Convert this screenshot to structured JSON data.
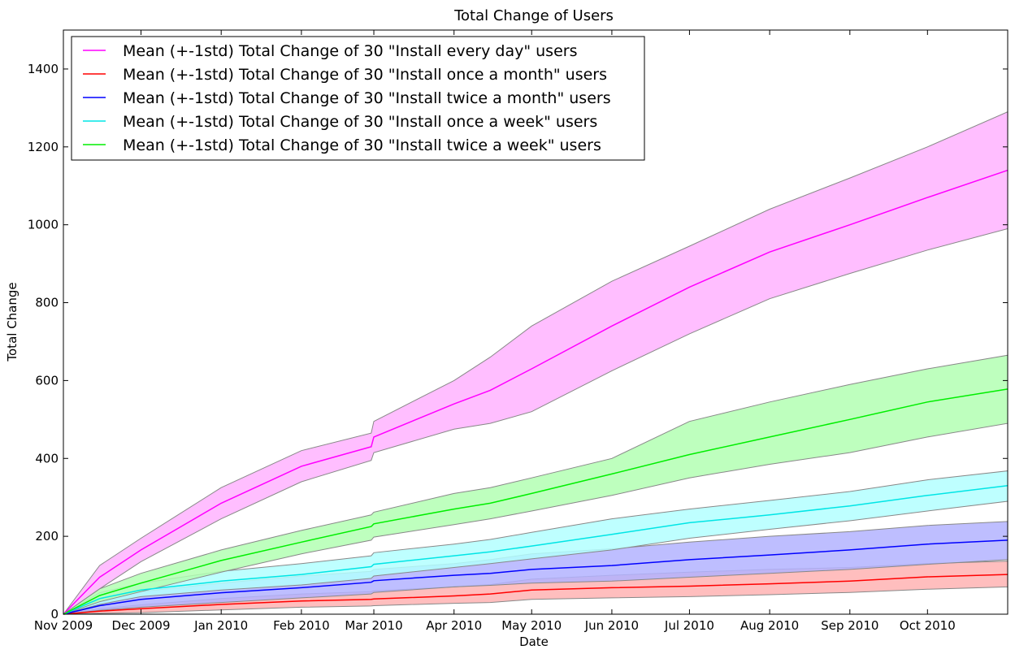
{
  "chart_data": {
    "type": "line",
    "title": "Total Change of Users",
    "xlabel": "Date",
    "ylabel": "Total Change",
    "x_range": [
      "2009-11-01",
      "2010-11-01"
    ],
    "xlim": [
      0,
      365
    ],
    "ylim": [
      0,
      1500
    ],
    "x_ticks": [
      {
        "label": "Nov 2009",
        "day": 0
      },
      {
        "label": "Dec 2009",
        "day": 30
      },
      {
        "label": "Jan 2010",
        "day": 61
      },
      {
        "label": "Feb 2010",
        "day": 92
      },
      {
        "label": "Mar 2010",
        "day": 120
      },
      {
        "label": "Apr 2010",
        "day": 151
      },
      {
        "label": "May 2010",
        "day": 181
      },
      {
        "label": "Jun 2010",
        "day": 212
      },
      {
        "label": "Jul 2010",
        "day": 242
      },
      {
        "label": "Aug 2010",
        "day": 273
      },
      {
        "label": "Sep 2010",
        "day": 304
      },
      {
        "label": "Oct 2010",
        "day": 334
      }
    ],
    "y_ticks": [
      0,
      200,
      400,
      600,
      800,
      1000,
      1200,
      1400
    ],
    "legend_position": "top-left",
    "grid": false,
    "x": [
      "2009-11-01",
      "2009-11-15",
      "2009-12-01",
      "2010-01-01",
      "2010-02-01",
      "2010-02-28",
      "2010-03-01",
      "2010-04-01",
      "2010-04-15",
      "2010-05-01",
      "2010-06-01",
      "2010-07-01",
      "2010-08-01",
      "2010-09-01",
      "2010-10-01",
      "2010-11-01"
    ],
    "series": [
      {
        "name": "Mean (+-1std) Total Change of 30 \"Install every day\" users",
        "color": "#ff00ff",
        "fill": "#ffb3ff",
        "mean": [
          0,
          95,
          165,
          285,
          380,
          430,
          455,
          540,
          575,
          630,
          740,
          840,
          930,
          1000,
          1070,
          1140
        ],
        "upper": [
          0,
          125,
          195,
          325,
          420,
          465,
          495,
          600,
          660,
          740,
          855,
          945,
          1040,
          1120,
          1200,
          1290
        ],
        "lower": [
          0,
          65,
          135,
          245,
          340,
          395,
          415,
          475,
          490,
          520,
          625,
          720,
          810,
          875,
          935,
          990
        ]
      },
      {
        "name": "Mean (+-1std) Total Change of 30 \"Install once a month\" users",
        "color": "#ff0000",
        "fill": "#ffb3b3",
        "mean": [
          0,
          8,
          14,
          25,
          34,
          38,
          39,
          47,
          52,
          62,
          68,
          72,
          78,
          85,
          96,
          102
        ],
        "upper": [
          0,
          14,
          24,
          40,
          52,
          58,
          60,
          70,
          76,
          90,
          100,
          108,
          115,
          120,
          130,
          136
        ],
        "lower": [
          0,
          2,
          4,
          11,
          18,
          21,
          22,
          28,
          30,
          38,
          42,
          45,
          50,
          56,
          64,
          70
        ]
      },
      {
        "name": "Mean (+-1std) Total Change of 30 \"Install twice a month\" users",
        "color": "#0000ff",
        "fill": "#b3b3ff",
        "mean": [
          0,
          22,
          38,
          55,
          68,
          82,
          86,
          100,
          105,
          115,
          125,
          140,
          152,
          165,
          180,
          190
        ],
        "upper": [
          0,
          35,
          58,
          80,
          98,
          110,
          115,
          130,
          140,
          155,
          168,
          185,
          200,
          212,
          228,
          238
        ],
        "lower": [
          0,
          10,
          18,
          30,
          42,
          52,
          56,
          70,
          74,
          80,
          85,
          95,
          105,
          115,
          128,
          140
        ]
      },
      {
        "name": "Mean (+-1std) Total Change of 30 \"Install once a week\" users",
        "color": "#00e5e5",
        "fill": "#b3ffff",
        "mean": [
          0,
          40,
          62,
          85,
          102,
          122,
          128,
          150,
          160,
          175,
          205,
          235,
          255,
          278,
          305,
          330
        ],
        "upper": [
          0,
          55,
          80,
          110,
          130,
          150,
          158,
          180,
          192,
          210,
          245,
          270,
          292,
          315,
          345,
          368
        ],
        "lower": [
          0,
          25,
          45,
          62,
          75,
          92,
          98,
          120,
          130,
          142,
          165,
          195,
          218,
          240,
          265,
          290
        ]
      },
      {
        "name": "Mean (+-1std) Total Change of 30 \"Install twice a week\" users",
        "color": "#00ee00",
        "fill": "#b3ffb3",
        "mean": [
          0,
          48,
          80,
          138,
          185,
          225,
          232,
          270,
          285,
          310,
          360,
          410,
          455,
          500,
          545,
          578
        ],
        "upper": [
          0,
          65,
          105,
          165,
          215,
          255,
          262,
          310,
          325,
          350,
          400,
          495,
          545,
          590,
          630,
          665
        ],
        "lower": [
          0,
          32,
          58,
          108,
          155,
          190,
          198,
          230,
          245,
          265,
          305,
          350,
          385,
          415,
          455,
          490
        ]
      }
    ]
  }
}
